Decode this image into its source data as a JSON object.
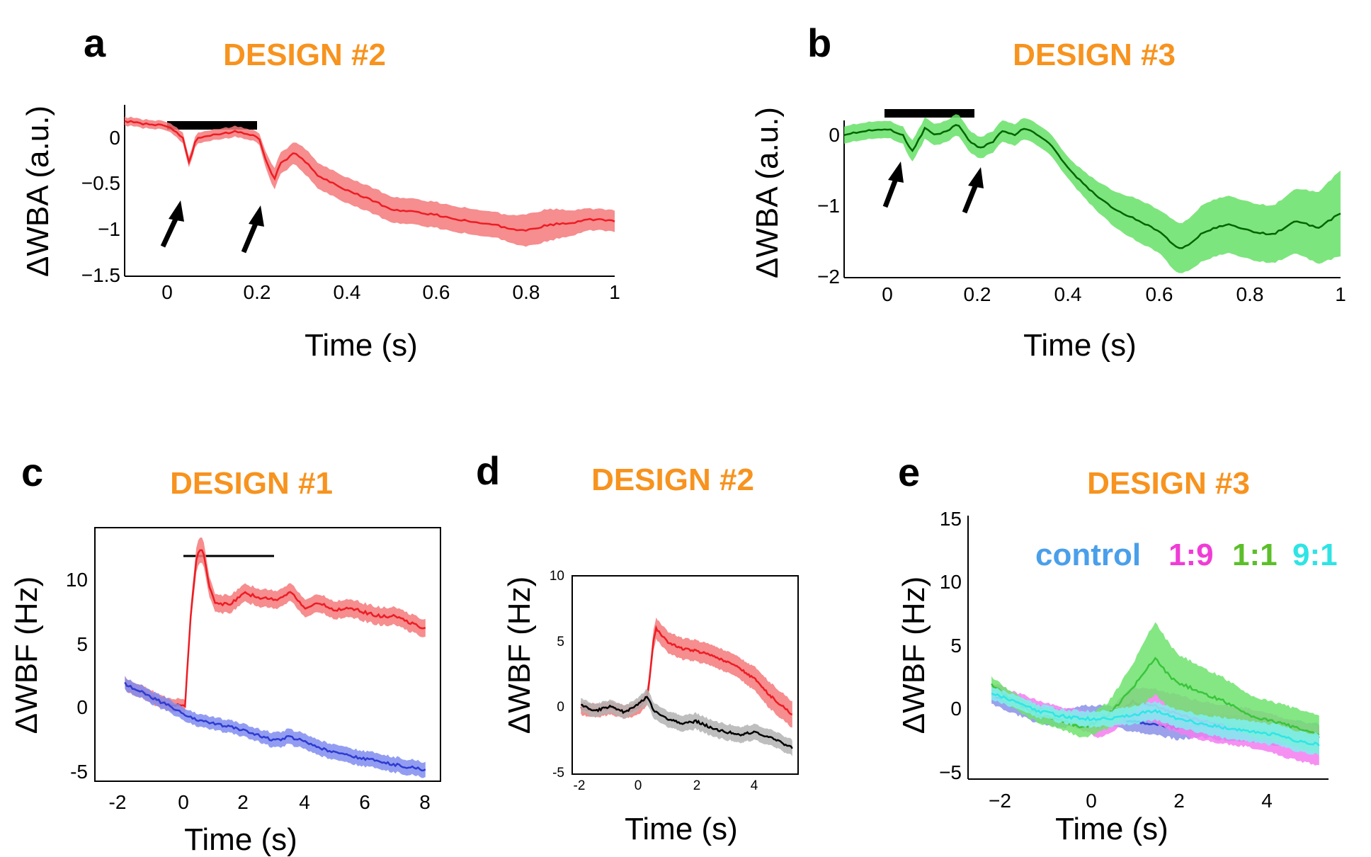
{
  "figure": {
    "panels": {
      "a": {
        "label": "a",
        "title": "DESIGN #2",
        "xlabel": "Time (s)",
        "ylabel": "ΔWBA (a.u.)",
        "xticks": [
          "0",
          "0.2",
          "0.4",
          "0.6",
          "0.8",
          "1"
        ],
        "yticks": [
          "0",
          "−0.5",
          "−1",
          "−1.5"
        ]
      },
      "b": {
        "label": "b",
        "title": "DESIGN #3",
        "xlabel": "Time (s)",
        "ylabel": "ΔWBA (a.u.)",
        "xticks": [
          "0",
          "0.2",
          "0.4",
          "0.6",
          "0.8",
          "1"
        ],
        "yticks": [
          "0",
          "−1",
          "−2"
        ]
      },
      "c": {
        "label": "c",
        "title": "DESIGN #1",
        "xlabel": "Time (s)",
        "ylabel": "ΔWBF (Hz)",
        "xticks": [
          "-2",
          "0",
          "2",
          "4",
          "6",
          "8"
        ],
        "yticks": [
          "10",
          "5",
          "0",
          "-5"
        ]
      },
      "d": {
        "label": "d",
        "title": "DESIGN #2",
        "xlabel": "Time (s)",
        "ylabel": "ΔWBF (Hz)",
        "xticks": [
          "-2",
          "0",
          "2",
          "4"
        ],
        "yticks": [
          "10",
          "5",
          "0",
          "-5"
        ]
      },
      "e": {
        "label": "e",
        "title": "DESIGN #3",
        "xlabel": "Time (s)",
        "ylabel": "ΔWBF (Hz)",
        "xticks": [
          "−2",
          "0",
          "2",
          "4"
        ],
        "yticks": [
          "15",
          "10",
          "5",
          "0",
          "−5"
        ],
        "legend": [
          "control",
          "1:9",
          "1:1",
          "9:1"
        ]
      }
    }
  },
  "chart_data": [
    {
      "panel": "a",
      "type": "line",
      "title": "DESIGN #2",
      "xlabel": "Time (s)",
      "ylabel": "ΔWBA (a.u.)",
      "xlim": [
        -0.1,
        1.0
      ],
      "ylim": [
        -1.5,
        0.1
      ],
      "grid": false,
      "stimulus_bar": [
        0.0,
        0.2
      ],
      "arrows_at_x": [
        0.03,
        0.21
      ],
      "series": [
        {
          "color": "#ED1C24",
          "band_color": "#F4797A",
          "x": [
            -0.1,
            -0.05,
            0.0,
            0.03,
            0.045,
            0.06,
            0.1,
            0.15,
            0.2,
            0.22,
            0.235,
            0.25,
            0.28,
            0.3,
            0.33,
            0.36,
            0.4,
            0.45,
            0.5,
            0.55,
            0.6,
            0.65,
            0.7,
            0.75,
            0.8,
            0.85,
            0.9,
            0.95,
            1.0
          ],
          "y": [
            -0.05,
            -0.08,
            -0.1,
            -0.2,
            -0.45,
            -0.22,
            -0.18,
            -0.15,
            -0.2,
            -0.45,
            -0.6,
            -0.45,
            -0.35,
            -0.4,
            -0.55,
            -0.62,
            -0.7,
            -0.78,
            -0.88,
            -0.9,
            -0.93,
            -0.97,
            -1.0,
            -1.04,
            -1.08,
            -1.02,
            -1.0,
            -0.97,
            -0.98
          ],
          "err": [
            0.04,
            0.04,
            0.04,
            0.05,
            0.05,
            0.05,
            0.05,
            0.05,
            0.05,
            0.08,
            0.1,
            0.1,
            0.1,
            0.12,
            0.12,
            0.12,
            0.12,
            0.12,
            0.12,
            0.12,
            0.12,
            0.12,
            0.12,
            0.12,
            0.15,
            0.15,
            0.12,
            0.1,
            0.1
          ]
        }
      ]
    },
    {
      "panel": "b",
      "type": "line",
      "title": "DESIGN #3",
      "xlabel": "Time (s)",
      "ylabel": "ΔWBA (a.u.)",
      "xlim": [
        -0.1,
        1.0
      ],
      "ylim": [
        -2.0,
        0.2
      ],
      "grid": false,
      "stimulus_bar": [
        0.0,
        0.2
      ],
      "arrows_at_x": [
        0.03,
        0.2
      ],
      "series": [
        {
          "color": "#006400",
          "band_color": "#66E066",
          "x": [
            -0.1,
            -0.05,
            0.0,
            0.03,
            0.05,
            0.08,
            0.1,
            0.13,
            0.15,
            0.18,
            0.2,
            0.23,
            0.25,
            0.28,
            0.3,
            0.33,
            0.36,
            0.4,
            0.45,
            0.5,
            0.55,
            0.6,
            0.63,
            0.65,
            0.7,
            0.75,
            0.8,
            0.85,
            0.9,
            0.95,
            1.0
          ],
          "y": [
            0.0,
            0.05,
            0.08,
            0.0,
            -0.25,
            0.1,
            0.0,
            0.05,
            0.15,
            -0.1,
            -0.2,
            -0.1,
            0.05,
            0.0,
            0.1,
            0.0,
            -0.15,
            -0.5,
            -0.8,
            -1.05,
            -1.2,
            -1.35,
            -1.55,
            -1.6,
            -1.35,
            -1.25,
            -1.35,
            -1.4,
            -1.2,
            -1.3,
            -1.1
          ],
          "err": [
            0.12,
            0.12,
            0.12,
            0.12,
            0.15,
            0.15,
            0.15,
            0.15,
            0.15,
            0.15,
            0.15,
            0.15,
            0.15,
            0.15,
            0.15,
            0.15,
            0.15,
            0.15,
            0.2,
            0.25,
            0.3,
            0.3,
            0.35,
            0.35,
            0.4,
            0.4,
            0.4,
            0.4,
            0.45,
            0.5,
            0.6
          ]
        }
      ]
    },
    {
      "panel": "c",
      "type": "line",
      "title": "DESIGN #1",
      "xlabel": "Time (s)",
      "ylabel": "ΔWBF (Hz)",
      "xlim": [
        -3,
        8.5
      ],
      "ylim": [
        -6.5,
        13.5
      ],
      "grid": false,
      "stimulus_bar": [
        0.0,
        3.0
      ],
      "series": [
        {
          "color": "#ED1C24",
          "band_color": "#F4797A",
          "x": [
            -2,
            -1.5,
            -1,
            -0.5,
            0,
            0.2,
            0.4,
            0.6,
            0.8,
            1,
            1.5,
            2,
            2.5,
            3,
            3.5,
            4,
            4.5,
            5,
            5.5,
            6,
            6.5,
            7,
            7.5,
            8
          ],
          "y": [
            1.2,
            0.6,
            0.0,
            -0.5,
            -0.5,
            7.0,
            11.5,
            11.8,
            9.0,
            7.5,
            7.5,
            8.3,
            8.0,
            7.8,
            8.4,
            7.2,
            7.5,
            7.0,
            7.2,
            6.8,
            6.5,
            6.5,
            6.0,
            5.5
          ],
          "err": [
            0.5,
            0.5,
            0.5,
            0.5,
            0.5,
            0.8,
            1.0,
            1.0,
            0.8,
            0.7,
            0.7,
            0.7,
            0.7,
            0.7,
            0.7,
            0.7,
            0.7,
            0.7,
            0.7,
            0.7,
            0.7,
            0.7,
            0.7,
            0.7
          ]
        },
        {
          "color": "#2E3BD1",
          "band_color": "#7F8CF0",
          "x": [
            -2,
            -1.5,
            -1,
            -0.5,
            0,
            0.5,
            1,
            1.5,
            2,
            2.5,
            3,
            3.5,
            4,
            4.5,
            5,
            5.5,
            6,
            6.5,
            7,
            7.5,
            8
          ],
          "y": [
            1.2,
            0.6,
            0.0,
            -0.6,
            -1.3,
            -1.7,
            -2.0,
            -2.2,
            -2.5,
            -2.9,
            -3.3,
            -3.0,
            -3.4,
            -3.9,
            -4.3,
            -4.5,
            -4.7,
            -5.0,
            -5.2,
            -5.4,
            -5.6
          ],
          "err": [
            0.5,
            0.5,
            0.5,
            0.5,
            0.5,
            0.5,
            0.5,
            0.5,
            0.5,
            0.5,
            0.6,
            0.6,
            0.6,
            0.6,
            0.6,
            0.6,
            0.6,
            0.6,
            0.6,
            0.6,
            0.6
          ]
        }
      ]
    },
    {
      "panel": "d",
      "type": "line",
      "title": "DESIGN #2",
      "xlabel": "Time (s)",
      "ylabel": "ΔWBF (Hz)",
      "xlim": [
        -2.3,
        5.5
      ],
      "ylim": [
        -5,
        10
      ],
      "grid": false,
      "series": [
        {
          "color": "#ED1C24",
          "band_color": "#F4797A",
          "x": [
            -2,
            -1.5,
            -1,
            -0.5,
            0,
            0.3,
            0.5,
            0.6,
            1,
            1.5,
            2,
            2.5,
            3,
            3.5,
            4,
            4.5,
            5.3
          ],
          "y": [
            0.0,
            -0.2,
            0.0,
            -0.3,
            0.0,
            0.8,
            5.0,
            6.0,
            5.0,
            4.5,
            4.3,
            4.0,
            3.5,
            3.0,
            2.2,
            1.0,
            -0.5
          ],
          "err": [
            0.5,
            0.5,
            0.5,
            0.5,
            0.5,
            0.6,
            0.8,
            0.8,
            0.8,
            0.8,
            0.8,
            0.8,
            0.8,
            0.8,
            0.9,
            1.0,
            1.0
          ]
        },
        {
          "color": "#000000",
          "band_color": "#B3B3B3",
          "x": [
            -2,
            -1.5,
            -1,
            -0.5,
            0,
            0.3,
            0.5,
            1,
            1.5,
            2,
            2.5,
            3,
            3.5,
            4,
            4.5,
            5.3
          ],
          "y": [
            0.2,
            -0.2,
            0.1,
            -0.3,
            0.3,
            0.9,
            -0.2,
            -0.8,
            -1.2,
            -1.0,
            -1.5,
            -1.8,
            -2.0,
            -1.8,
            -2.2,
            -3.0
          ],
          "err": [
            0.5,
            0.5,
            0.5,
            0.5,
            0.5,
            0.6,
            0.6,
            0.6,
            0.6,
            0.6,
            0.6,
            0.6,
            0.6,
            0.6,
            0.6,
            0.6
          ]
        }
      ]
    },
    {
      "panel": "e",
      "type": "line",
      "title": "DESIGN #3",
      "xlabel": "Time (s)",
      "ylabel": "ΔWBF (Hz)",
      "xlim": [
        -2.5,
        5.2
      ],
      "ylim": [
        -5.5,
        15
      ],
      "grid": false,
      "legend": "top",
      "series": [
        {
          "name": "control",
          "color": "#2E3BD1",
          "band_color": "#8A91E8",
          "x": [
            -2,
            -1.5,
            -1,
            -0.5,
            0,
            0.5,
            1,
            1.5,
            2,
            2.5,
            3,
            3.5,
            4,
            4.5,
            5
          ],
          "y": [
            1.0,
            0.3,
            -0.5,
            -0.8,
            -0.5,
            -0.5,
            -1.0,
            -1.3,
            -1.5,
            -1.3,
            -1.5,
            -1.5,
            -1.8,
            -2.0,
            -2.2
          ],
          "err": [
            0.7,
            0.7,
            0.7,
            0.7,
            0.7,
            0.7,
            0.8,
            0.8,
            0.9,
            0.9,
            1.0,
            1.0,
            1.0,
            1.0,
            1.0
          ]
        },
        {
          "name": "1:9",
          "color": "#E63CD7",
          "band_color": "#F37CF0",
          "x": [
            -2,
            -1.5,
            -1,
            -0.5,
            0,
            0.3,
            0.6,
            1,
            1.5,
            2,
            2.5,
            3,
            3.5,
            4,
            4.5,
            5
          ],
          "y": [
            1.5,
            0.8,
            0.0,
            -0.5,
            -1.0,
            -1.5,
            -0.8,
            0.5,
            0.2,
            -0.5,
            -1.0,
            -1.3,
            -1.5,
            -2.0,
            -2.5,
            -3.0
          ],
          "err": [
            0.5,
            0.5,
            0.6,
            0.6,
            0.8,
            0.8,
            1.0,
            1.2,
            1.3,
            1.5,
            1.5,
            1.5,
            1.5,
            1.5,
            1.5,
            1.5
          ]
        },
        {
          "name": "1:1",
          "color": "#3BC43B",
          "band_color": "#6EE36E",
          "x": [
            -2,
            -1.5,
            -1,
            -0.5,
            0,
            0.5,
            1,
            1.3,
            1.5,
            1.8,
            2,
            2.5,
            3,
            3.5,
            4,
            4.5,
            5
          ],
          "y": [
            1.8,
            0.5,
            -0.5,
            -1.0,
            -1.5,
            -0.5,
            1.5,
            3.0,
            4.0,
            2.5,
            2.0,
            1.2,
            0.5,
            -0.5,
            -1.0,
            -1.5,
            -2.0
          ],
          "err": [
            0.6,
            0.6,
            0.6,
            0.7,
            0.8,
            1.0,
            1.8,
            2.5,
            2.8,
            2.5,
            2.2,
            2.0,
            1.8,
            1.6,
            1.5,
            1.5,
            1.5
          ]
        },
        {
          "name": "9:1",
          "color": "#2EE6E6",
          "band_color": "#7FF0F0",
          "x": [
            -2,
            -1.5,
            -1,
            -0.5,
            0,
            0.5,
            1,
            1.5,
            2,
            2.5,
            3,
            3.5,
            4,
            4.5,
            5
          ],
          "y": [
            1.2,
            0.5,
            -0.2,
            -0.6,
            -0.8,
            -0.8,
            -0.5,
            -0.2,
            -0.8,
            -1.2,
            -1.5,
            -1.8,
            -2.0,
            -2.5,
            -2.8
          ],
          "err": [
            0.5,
            0.5,
            0.5,
            0.5,
            0.6,
            0.6,
            0.7,
            0.7,
            0.7,
            0.7,
            0.8,
            0.8,
            0.8,
            0.8,
            0.8
          ]
        }
      ]
    }
  ],
  "colors": {
    "title_orange": "#F7931E",
    "legend_control": "#4A9FEA",
    "legend_1_9": "#F03CD6",
    "legend_1_1": "#5CBF2A",
    "legend_9_1": "#2FE4E4"
  }
}
